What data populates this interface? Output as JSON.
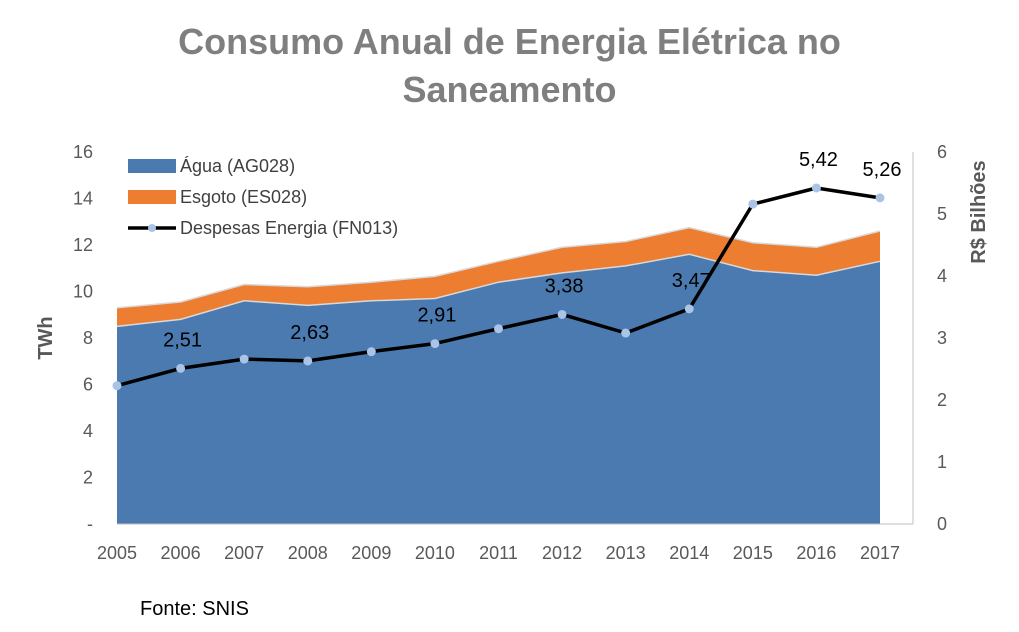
{
  "chart_data": {
    "type": "area",
    "title_line1": "Consumo Anual de Energia Elétrica no",
    "title_line2": "Saneamento",
    "categories": [
      "2005",
      "2006",
      "2007",
      "2008",
      "2009",
      "2010",
      "2011",
      "2012",
      "2013",
      "2014",
      "2015",
      "2016",
      "2017"
    ],
    "series": [
      {
        "name": "Água (AG028)",
        "kind": "stacked-area",
        "axis": "left",
        "color": "#4a7ab0",
        "values": [
          8.5,
          8.8,
          9.6,
          9.4,
          9.6,
          9.7,
          10.4,
          10.8,
          11.1,
          11.6,
          10.9,
          10.7,
          11.3
        ]
      },
      {
        "name": "Esgoto (ES028)",
        "kind": "stacked-area",
        "axis": "left",
        "color": "#ed7d31",
        "values": [
          0.8,
          0.75,
          0.7,
          0.8,
          0.8,
          0.95,
          0.9,
          1.1,
          1.05,
          1.15,
          1.2,
          1.2,
          1.3
        ]
      },
      {
        "name": "Despesas Energia (FN013)",
        "kind": "line",
        "axis": "right",
        "color": "#000000",
        "marker_color": "#a9c4e6",
        "values": [
          2.23,
          2.51,
          2.66,
          2.63,
          2.78,
          2.91,
          3.15,
          3.38,
          3.08,
          3.47,
          5.16,
          5.42,
          5.26
        ]
      }
    ],
    "data_labels": [
      {
        "index": 1,
        "text": "2,51"
      },
      {
        "index": 3,
        "text": "2,63"
      },
      {
        "index": 5,
        "text": "2,91"
      },
      {
        "index": 7,
        "text": "3,38"
      },
      {
        "index": 9,
        "text": "3,47"
      },
      {
        "index": 11,
        "text": "5,42"
      },
      {
        "index": 12,
        "text": "5,26"
      }
    ],
    "ylabel": "TWh",
    "ylabel_right": "R$ Bilhões",
    "ylim": [
      0,
      16
    ],
    "ylim_right": [
      0,
      6
    ],
    "yticks": [
      0,
      2,
      4,
      6,
      8,
      10,
      12,
      14,
      16
    ],
    "ytick_labels": [
      "-",
      "2",
      "4",
      "6",
      "8",
      "10",
      "12",
      "14",
      "16"
    ],
    "yticks_right": [
      "0",
      "1",
      "2",
      "3",
      "4",
      "5",
      "6"
    ],
    "legend_position": "top-left"
  },
  "source": "Fonte: SNIS"
}
